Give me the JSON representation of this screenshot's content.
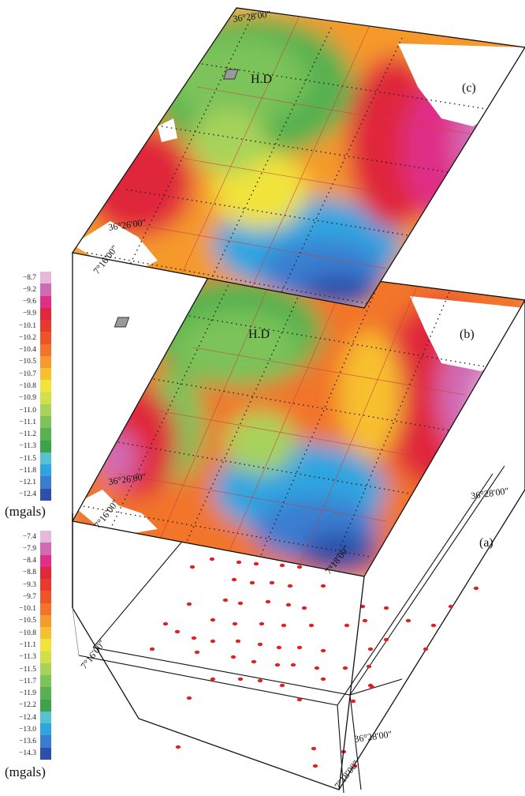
{
  "panels": {
    "a": {
      "label": "(a)"
    },
    "b": {
      "label": "(b)"
    },
    "c": {
      "label": "(c)"
    }
  },
  "site_label": "H.D",
  "coords": {
    "lat_north": "36°28′00″",
    "lat_south": "36°26′00″",
    "lon_west": "7°16′00″",
    "lon_east": "7°18′00″"
  },
  "colorbar_upper": {
    "unit": "(mgals)",
    "ticks": [
      "−8.7",
      "−9.2",
      "−9.6",
      "−9.9",
      "−10.1",
      "−10.2",
      "−10.4",
      "−10.5",
      "−10.7",
      "−10.8",
      "−10.9",
      "−11.0",
      "−11.1",
      "−11.2",
      "−11.3",
      "−11.5",
      "−11.8",
      "−12.1",
      "−12.4"
    ],
    "colors": [
      "#e6b8da",
      "#d06ab4",
      "#df2f87",
      "#e0283a",
      "#e83a2c",
      "#ef5428",
      "#f2742a",
      "#f59a2b",
      "#f7c02f",
      "#f1e33a",
      "#cfe049",
      "#a8d35a",
      "#7cc35a",
      "#57b150",
      "#3ea24a",
      "#56c2cf",
      "#2ea5e0",
      "#3a7dd0",
      "#2c4fa7"
    ]
  },
  "colorbar_lower": {
    "unit": "(mgals)",
    "ticks": [
      "−7.4",
      "−7.9",
      "−8.4",
      "−8.8",
      "−9.3",
      "−9.7",
      "−10.1",
      "−10.5",
      "−10.8",
      "−11.1",
      "−11.3",
      "−11.5",
      "−11.7",
      "−11.9",
      "−12.2",
      "−12.4",
      "−13.0",
      "−13.6",
      "−14.3"
    ],
    "colors": [
      "#e6b8da",
      "#d06ab4",
      "#df2f87",
      "#e0283a",
      "#e83a2c",
      "#ef5428",
      "#f2742a",
      "#f59a2b",
      "#f7c02f",
      "#f1e33a",
      "#cfe049",
      "#a8d35a",
      "#7cc35a",
      "#57b150",
      "#3ea24a",
      "#56c2cf",
      "#2ea5e0",
      "#3a7dd0",
      "#2c4fa7"
    ]
  },
  "colors": {
    "station": "#d7262b",
    "frame": "#111111",
    "grid_red": "#c9403e"
  }
}
